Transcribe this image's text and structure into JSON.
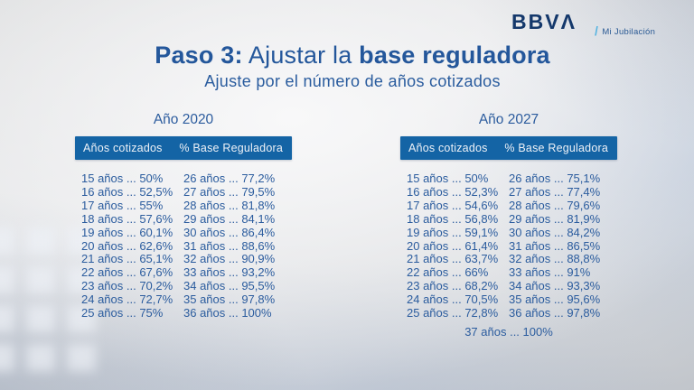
{
  "brand": {
    "logo_main": "BBV",
    "logo_a": "Λ",
    "tagline_slash": "/",
    "tagline_label": "Mi Jubilación"
  },
  "header": {
    "title_prefix": "Paso 3:",
    "title_mid": " Ajustar la ",
    "title_emph": "base reguladora",
    "subtitle": "Ajuste por el número de años cotizados"
  },
  "colors": {
    "header_bar_blue": "#1464A5",
    "text_blue": "#2B5C9E",
    "title_blue": "#24579B",
    "logo_navy": "#14386B",
    "slash_teal": "#58B4E0"
  },
  "tables": [
    {
      "year_label": "Año 2020",
      "col_headers": [
        "Años cotizados",
        "% Base Reguladora"
      ],
      "rows_a": [
        "15 años ... 50%",
        "16 años ... 52,5%",
        "17 años ... 55%",
        "18 años ... 57,6%",
        "19 años ... 60,1%",
        "20 años ... 62,6%",
        "21 años ... 65,1%",
        "22 años ... 67,6%",
        "23 años ... 70,2%",
        "24 años ... 72,7%",
        "25 años ... 75%"
      ],
      "rows_b": [
        "26 años ... 77,2%",
        "27 años ... 79,5%",
        "28 años ... 81,8%",
        "29 años ... 84,1%",
        "30 años ... 86,4%",
        "31 años ... 88,6%",
        "32 años ... 90,9%",
        "33 años ... 93,2%",
        "34 años ... 95,5%",
        "35 años ... 97,8%",
        "36 años ... 100%"
      ]
    },
    {
      "year_label": "Año 2027",
      "col_headers": [
        "Años cotizados",
        "% Base Reguladora"
      ],
      "rows_a": [
        "15 años ... 50%",
        "16 años ... 52,3%",
        "17 años ... 54,6%",
        "18 años ... 56,8%",
        "19 años ... 59,1%",
        "20 años ... 61,4%",
        "21 años ... 63,7%",
        "22 años ... 66%",
        "23 años ... 68,2%",
        "24 años ... 70,5%",
        "25 años ... 72,8%"
      ],
      "rows_b": [
        "26 años ... 75,1%",
        "27 años ... 77,4%",
        "28 años ... 79,6%",
        "29 años ... 81,9%",
        "30 años ... 84,2%",
        "31 años ... 86,5%",
        "32 años ... 88,8%",
        "33 años ... 91%",
        "34 años ... 93,3%",
        "35 años ... 95,6%",
        "36 años ... 97,8%"
      ],
      "footer_row": "37 años ... 100%"
    }
  ]
}
